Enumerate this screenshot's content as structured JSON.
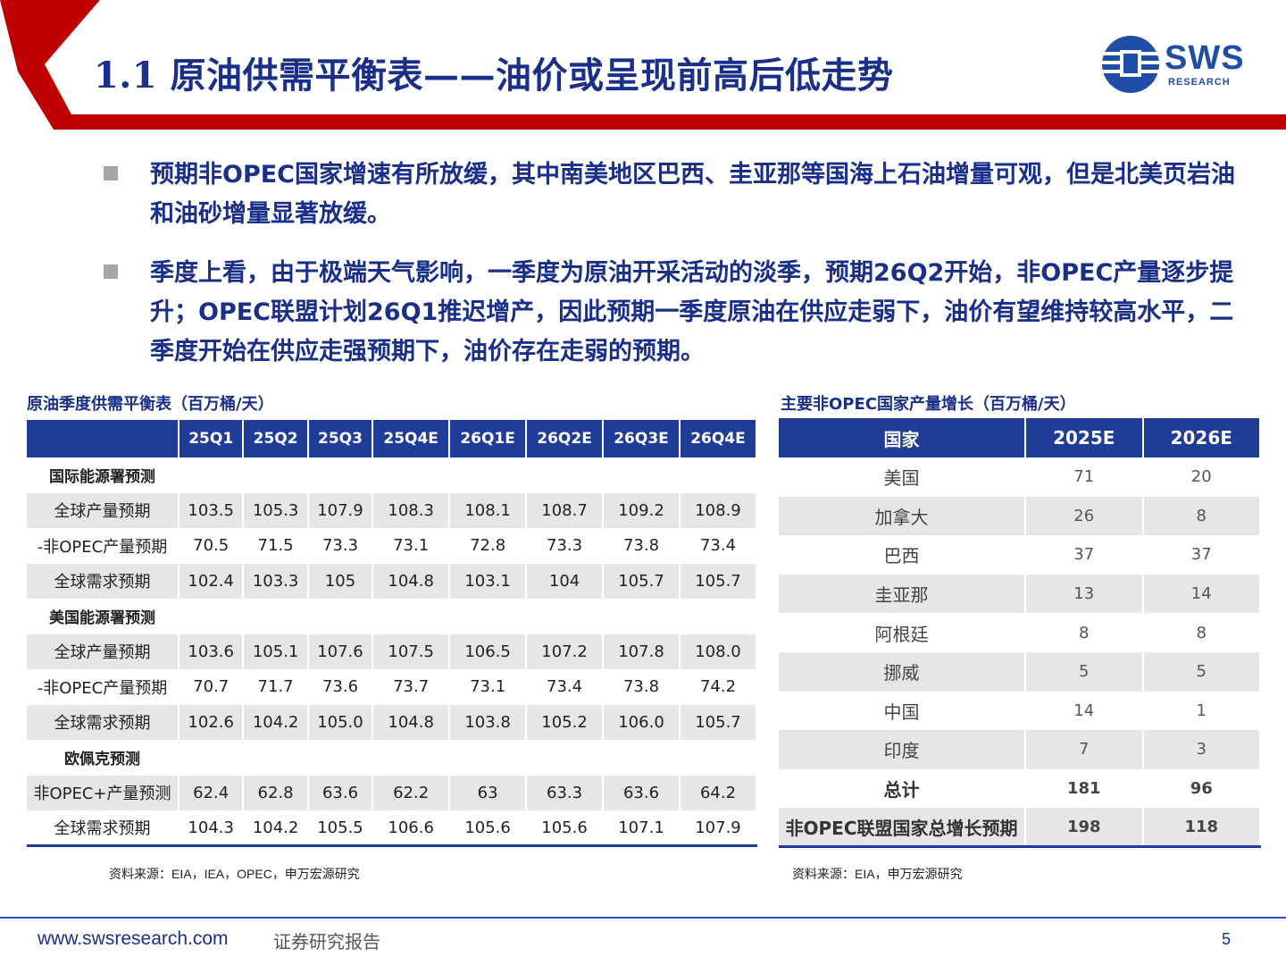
{
  "header": {
    "title": "1.1 原油供需平衡表——油价或呈现前高后低走势",
    "logo_text": "SWS",
    "logo_sub": "RESEARCH",
    "accent_color": "#c00000",
    "brand_color": "#1f3c99"
  },
  "bullets": [
    "预期非OPEC国家增速有所放缓，其中南美地区巴西、圭亚那等国海上石油增量可观，但是北美页岩油和油砂增量显著放缓。",
    "季度上看，由于极端天气影响，一季度为原油开采活动的淡季，预期26Q2开始，非OPEC产量逐步提升；OPEC联盟计划26Q1推迟增产，因此预期一季度原油在供应走弱下，油价有望维持较高水平，二季度开始在供应走强预期下，油价存在走弱的预期。"
  ],
  "left_table": {
    "caption": "原油季度供需平衡表（百万桶/天）",
    "columns": [
      "25Q1",
      "25Q2",
      "25Q3",
      "25Q4E",
      "26Q1E",
      "26Q2E",
      "26Q3E",
      "26Q4E"
    ],
    "rows": [
      {
        "label": "国际能源署预测",
        "section": true,
        "values": [
          "",
          "",
          "",
          "",
          "",
          "",
          "",
          ""
        ]
      },
      {
        "label": "全球产量预期",
        "values": [
          "103.5",
          "105.3",
          "107.9",
          "108.3",
          "108.1",
          "108.7",
          "109.2",
          "108.9"
        ]
      },
      {
        "label": "-非OPEC产量预期",
        "values": [
          "70.5",
          "71.5",
          "73.3",
          "73.1",
          "72.8",
          "73.3",
          "73.8",
          "73.4"
        ]
      },
      {
        "label": "全球需求预期",
        "values": [
          "102.4",
          "103.3",
          "105",
          "104.8",
          "103.1",
          "104",
          "105.7",
          "105.7"
        ]
      },
      {
        "label": "美国能源署预测",
        "section": true,
        "values": [
          "",
          "",
          "",
          "",
          "",
          "",
          "",
          ""
        ]
      },
      {
        "label": "全球产量预期",
        "values": [
          "103.6",
          "105.1",
          "107.6",
          "107.5",
          "106.5",
          "107.2",
          "107.8",
          "108.0"
        ]
      },
      {
        "label": "-非OPEC产量预期",
        "values": [
          "70.7",
          "71.7",
          "73.6",
          "73.7",
          "73.1",
          "73.4",
          "73.8",
          "74.2"
        ]
      },
      {
        "label": "全球需求预期",
        "values": [
          "102.6",
          "104.2",
          "105.0",
          "104.8",
          "103.8",
          "105.2",
          "106.0",
          "105.7"
        ]
      },
      {
        "label": "欧佩克预测",
        "section": true,
        "values": [
          "",
          "",
          "",
          "",
          "",
          "",
          "",
          ""
        ]
      },
      {
        "label": "非OPEC+产量预测",
        "values": [
          "62.4",
          "62.8",
          "63.6",
          "62.2",
          "63",
          "63.3",
          "63.6",
          "64.2"
        ]
      },
      {
        "label": "全球需求预期",
        "values": [
          "104.3",
          "104.2",
          "105.5",
          "106.6",
          "105.6",
          "105.6",
          "107.1",
          "107.9"
        ]
      }
    ],
    "source": "资料来源：EIA，IEA，OPEC，申万宏源研究"
  },
  "right_table": {
    "caption": "主要非OPEC国家产量增长（百万桶/天）",
    "columns": [
      "国家",
      "2025E",
      "2026E"
    ],
    "rows": [
      {
        "country": "美国",
        "values": [
          "71",
          "20"
        ]
      },
      {
        "country": "加拿大",
        "values": [
          "26",
          "8"
        ]
      },
      {
        "country": "巴西",
        "values": [
          "37",
          "37"
        ]
      },
      {
        "country": "圭亚那",
        "values": [
          "13",
          "14"
        ]
      },
      {
        "country": "阿根廷",
        "values": [
          "8",
          "8"
        ]
      },
      {
        "country": "挪威",
        "values": [
          "5",
          "5"
        ]
      },
      {
        "country": "中国",
        "values": [
          "14",
          "1"
        ]
      },
      {
        "country": "印度",
        "values": [
          "7",
          "3"
        ]
      },
      {
        "country": "总计",
        "total": true,
        "values": [
          "181",
          "96"
        ]
      },
      {
        "country": "非OPEC联盟国家总增长预期",
        "total": true,
        "values": [
          "198",
          "118"
        ]
      }
    ],
    "source": "资料来源：EIA，申万宏源研究"
  },
  "footer": {
    "url": "www.swsresearch.com",
    "label": "证券研究报告",
    "page": "5"
  }
}
